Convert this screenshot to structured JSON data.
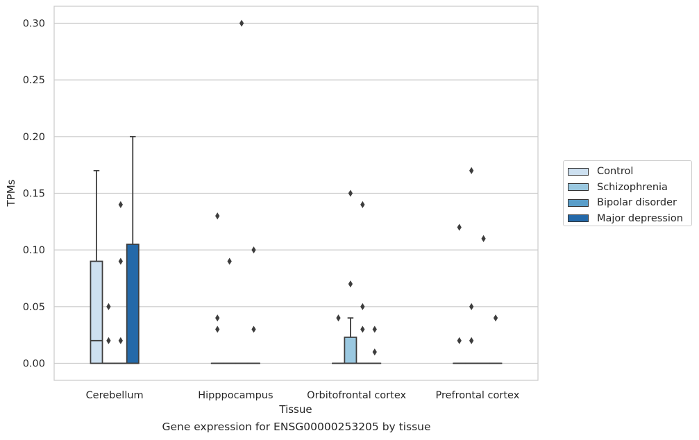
{
  "chart_data": {
    "type": "box",
    "title": "",
    "caption": "Gene expression for ENSG00000253205 by tissue",
    "xlabel": "Tissue",
    "ylabel": "TPMs",
    "ylim": [
      -0.015,
      0.315
    ],
    "yticks": [
      0.0,
      0.05,
      0.1,
      0.15,
      0.2,
      0.25,
      0.3
    ],
    "ytick_labels": [
      "0.00",
      "0.05",
      "0.10",
      "0.15",
      "0.20",
      "0.25",
      "0.30"
    ],
    "grid": true,
    "legend_position": "right",
    "categories": [
      "Cerebellum",
      "Hipppocampus",
      "Orbitofrontal cortex",
      "Prefrontal cortex"
    ],
    "series": [
      {
        "name": "Control",
        "color": "#cde0f0",
        "boxes": [
          {
            "q1": 0.0,
            "median": 0.02,
            "q3": 0.09,
            "whisker_low": 0.0,
            "whisker_high": 0.17,
            "outliers": []
          },
          {
            "q1": 0.0,
            "median": 0.0,
            "q3": 0.0,
            "whisker_low": 0.0,
            "whisker_high": 0.0,
            "outliers": [
              0.13,
              0.04,
              0.03
            ]
          },
          {
            "q1": 0.0,
            "median": 0.0,
            "q3": 0.0,
            "whisker_low": 0.0,
            "whisker_high": 0.0,
            "outliers": [
              0.04
            ]
          },
          {
            "q1": 0.0,
            "median": 0.0,
            "q3": 0.0,
            "whisker_low": 0.0,
            "whisker_high": 0.0,
            "outliers": [
              0.12,
              0.02
            ]
          }
        ]
      },
      {
        "name": "Schizophrenia",
        "color": "#9ac8e0",
        "boxes": [
          {
            "q1": 0.0,
            "median": 0.0,
            "q3": 0.0,
            "whisker_low": 0.0,
            "whisker_high": 0.0,
            "outliers": [
              0.05,
              0.02
            ]
          },
          {
            "q1": 0.0,
            "median": 0.0,
            "q3": 0.0,
            "whisker_low": 0.0,
            "whisker_high": 0.0,
            "outliers": [
              0.09
            ]
          },
          {
            "q1": 0.0,
            "median": 0.0,
            "q3": 0.023,
            "whisker_low": 0.0,
            "whisker_high": 0.04,
            "outliers": [
              0.15,
              0.07
            ]
          },
          {
            "q1": 0.0,
            "median": 0.0,
            "q3": 0.0,
            "whisker_low": 0.0,
            "whisker_high": 0.0,
            "outliers": [
              0.17,
              0.05,
              0.02
            ]
          }
        ]
      },
      {
        "name": "Bipolar disorder",
        "color": "#5a9ec9",
        "boxes": [
          {
            "q1": 0.0,
            "median": 0.0,
            "q3": 0.0,
            "whisker_low": 0.0,
            "whisker_high": 0.0,
            "outliers": [
              0.14,
              0.09,
              0.02
            ]
          },
          {
            "q1": 0.0,
            "median": 0.0,
            "q3": 0.0,
            "whisker_low": 0.0,
            "whisker_high": 0.0,
            "outliers": [
              0.3
            ]
          },
          {
            "q1": 0.0,
            "median": 0.0,
            "q3": 0.0,
            "whisker_low": 0.0,
            "whisker_high": 0.0,
            "outliers": [
              0.14,
              0.05,
              0.03
            ]
          },
          {
            "q1": 0.0,
            "median": 0.0,
            "q3": 0.0,
            "whisker_low": 0.0,
            "whisker_high": 0.0,
            "outliers": [
              0.11
            ]
          }
        ]
      },
      {
        "name": "Major depression",
        "color": "#2469a9",
        "boxes": [
          {
            "q1": 0.0,
            "median": 0.0,
            "q3": 0.105,
            "whisker_low": 0.0,
            "whisker_high": 0.2,
            "outliers": []
          },
          {
            "q1": 0.0,
            "median": 0.0,
            "q3": 0.0,
            "whisker_low": 0.0,
            "whisker_high": 0.0,
            "outliers": [
              0.1,
              0.03
            ]
          },
          {
            "q1": 0.0,
            "median": 0.0,
            "q3": 0.0,
            "whisker_low": 0.0,
            "whisker_high": 0.0,
            "outliers": [
              0.03,
              0.01
            ]
          },
          {
            "q1": 0.0,
            "median": 0.0,
            "q3": 0.0,
            "whisker_low": 0.0,
            "whisker_high": 0.0,
            "outliers": [
              0.04
            ]
          }
        ]
      }
    ]
  }
}
